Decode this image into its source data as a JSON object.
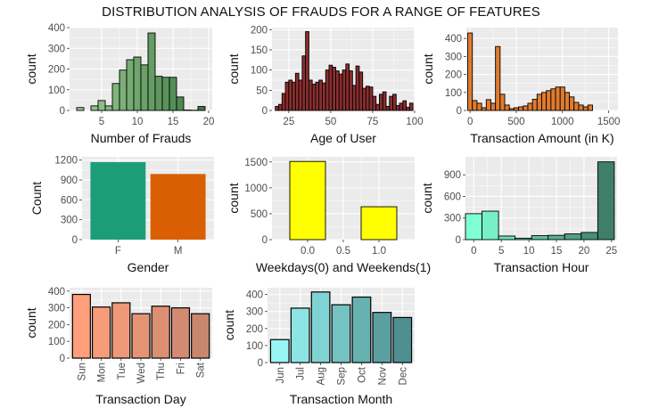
{
  "title": "DISTRIBUTION ANALYSIS OF FRAUDS FOR A RANGE OF FEATURES",
  "chart_data": [
    {
      "id": "frauds",
      "type": "bar",
      "xlabel": "Number of Frauds",
      "ylabel": "count",
      "xlim": [
        0.5,
        20.5
      ],
      "ylim": [
        0,
        400
      ],
      "xticks": [
        5,
        10,
        15,
        20
      ],
      "yticks": [
        0,
        100,
        200,
        300,
        400
      ],
      "x": [
        2,
        3,
        4,
        5,
        6,
        7,
        8,
        9,
        10,
        11,
        12,
        13,
        14,
        15,
        16,
        17,
        18,
        19
      ],
      "values": [
        14,
        0,
        22,
        48,
        22,
        130,
        195,
        245,
        258,
        220,
        374,
        165,
        160,
        160,
        65,
        2,
        1,
        19
      ],
      "fill": "#9ACD91",
      "fill_end": "#3F7A45",
      "border": "#000000"
    },
    {
      "id": "age",
      "type": "bar",
      "xlabel": "Age of User",
      "ylabel": "count",
      "xlim": [
        15,
        100
      ],
      "ylim": [
        0,
        205
      ],
      "xticks": [
        25,
        50,
        75,
        100
      ],
      "yticks": [
        0,
        50,
        100,
        150,
        200
      ],
      "x": [
        18,
        20,
        22,
        24,
        26,
        28,
        30,
        32,
        34,
        36,
        38,
        40,
        42,
        44,
        46,
        48,
        50,
        52,
        54,
        56,
        58,
        60,
        62,
        64,
        66,
        68,
        70,
        72,
        74,
        76,
        78,
        80,
        82,
        84,
        86,
        88,
        90,
        92,
        94,
        96,
        98
      ],
      "values": [
        10,
        15,
        42,
        70,
        75,
        70,
        92,
        75,
        135,
        195,
        75,
        65,
        70,
        75,
        68,
        100,
        112,
        107,
        98,
        90,
        100,
        115,
        98,
        62,
        110,
        95,
        55,
        60,
        58,
        35,
        15,
        40,
        46,
        10,
        35,
        40,
        12,
        18,
        24,
        8,
        18
      ],
      "fill": "#8B2E2E",
      "border": "#000000"
    },
    {
      "id": "amount",
      "type": "bar",
      "xlabel": "Transaction Amount (in K)",
      "ylabel": "count",
      "xlim": [
        -40,
        1600
      ],
      "ylim": [
        0,
        460
      ],
      "xticks": [
        0,
        500,
        1000,
        1500
      ],
      "yticks": [
        0,
        100,
        200,
        300,
        400
      ],
      "x": [
        0,
        50,
        100,
        150,
        200,
        250,
        300,
        350,
        400,
        450,
        500,
        550,
        600,
        650,
        700,
        750,
        800,
        850,
        900,
        950,
        1000,
        1050,
        1100,
        1150,
        1200,
        1250,
        1300
      ],
      "values": [
        430,
        55,
        40,
        15,
        60,
        40,
        355,
        90,
        30,
        10,
        15,
        20,
        25,
        40,
        62,
        90,
        100,
        110,
        120,
        130,
        130,
        100,
        75,
        45,
        30,
        20,
        30
      ],
      "fill": "#E07B2E",
      "border": "#000000"
    },
    {
      "id": "gender",
      "type": "bar",
      "xlabel": "Gender",
      "ylabel": "Count",
      "ylim": [
        0,
        1250
      ],
      "yticks": [
        0,
        300,
        600,
        900,
        1200
      ],
      "categories": [
        "F",
        "M"
      ],
      "values": [
        1170,
        990
      ],
      "colors": [
        "#1B9E77",
        "#D95F02"
      ],
      "border": "none"
    },
    {
      "id": "weekdays",
      "type": "bar",
      "xlabel": "Weekdays(0) and Weekends(1)",
      "ylabel": "count",
      "xlim": [
        -0.5,
        1.5
      ],
      "ylim": [
        0,
        1600
      ],
      "xticks": [
        0.0,
        0.5,
        1.0
      ],
      "xtick_labels": [
        "0.0",
        "0.5",
        "1.0"
      ],
      "yticks": [
        0,
        500,
        1000,
        1500
      ],
      "x": [
        0,
        0.5,
        1
      ],
      "values": [
        1510,
        0,
        635
      ],
      "fill": "#FFFF00",
      "border": "#000000"
    },
    {
      "id": "hour",
      "type": "bar",
      "xlabel": "Transaction Hour",
      "ylabel": "count",
      "xlim": [
        -1.5,
        26
      ],
      "ylim": [
        0,
        1150
      ],
      "xticks": [
        0,
        5,
        10,
        15,
        20,
        25
      ],
      "yticks": [
        0,
        300,
        600,
        900
      ],
      "x": [
        0,
        3,
        6,
        9,
        12,
        15,
        18,
        21,
        24
      ],
      "values": [
        360,
        395,
        50,
        20,
        55,
        60,
        80,
        100,
        1080
      ],
      "fill": "#7FFFD4",
      "fill_end": "#3F7F6A",
      "border": "#000000"
    },
    {
      "id": "day",
      "type": "bar",
      "xlabel": "Transaction Day",
      "ylabel": "count",
      "ylim": [
        0,
        420
      ],
      "yticks": [
        0,
        100,
        200,
        300,
        400
      ],
      "categories": [
        "Sun",
        "Mon",
        "Tue",
        "Wed",
        "Thu",
        "Fri",
        "Sat"
      ],
      "values": [
        380,
        305,
        330,
        265,
        310,
        300,
        265
      ],
      "fill": "#FFA07A",
      "fill_end": "#C98770",
      "border": "#000000",
      "rotate_labels": true
    },
    {
      "id": "month",
      "type": "bar",
      "xlabel": "Transaction Month",
      "ylabel": "count",
      "ylim": [
        0,
        440
      ],
      "yticks": [
        0,
        100,
        200,
        300,
        400
      ],
      "categories": [
        "Jun",
        "Jul",
        "Aug",
        "Sep",
        "Oct",
        "Nov",
        "Dec"
      ],
      "values": [
        135,
        320,
        415,
        340,
        385,
        295,
        265
      ],
      "fill": "#98F5F5",
      "fill_end": "#4F8F8F",
      "border": "#000000",
      "rotate_labels": true
    }
  ]
}
